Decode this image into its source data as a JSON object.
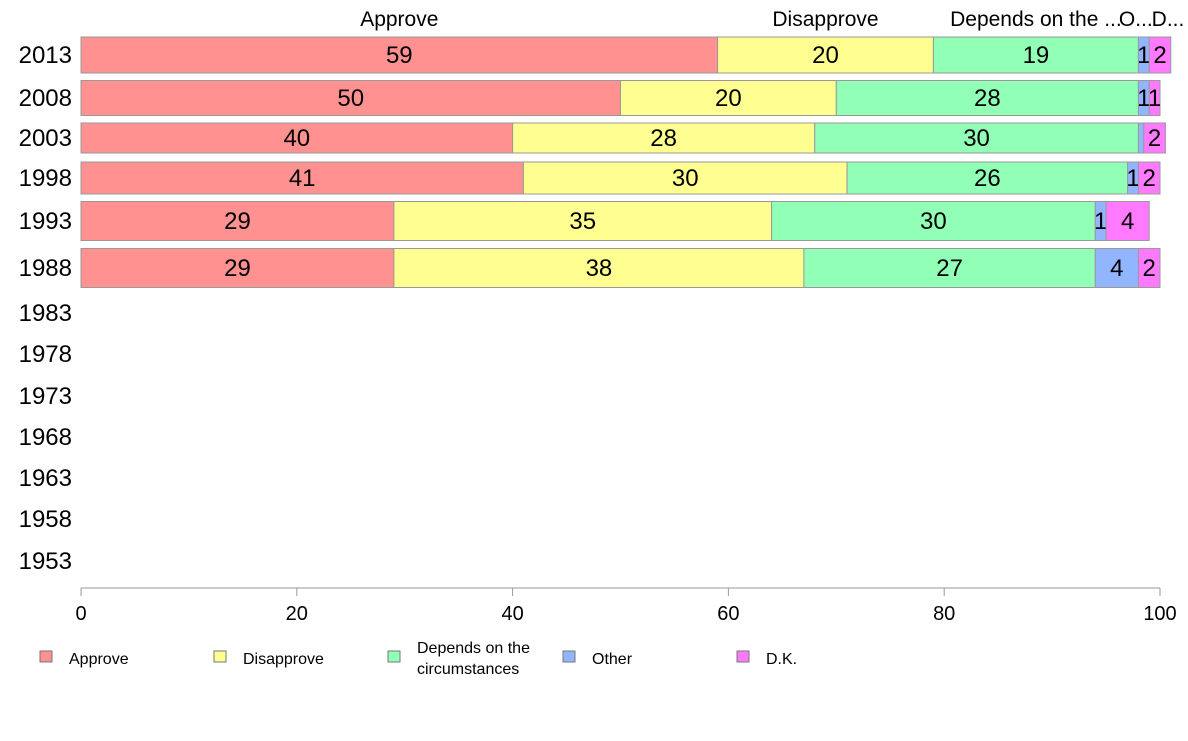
{
  "chart_data": {
    "type": "bar",
    "orientation": "horizontal",
    "stacked": true,
    "xlim": [
      0,
      100
    ],
    "x_ticks": [
      0,
      20,
      40,
      60,
      80,
      100
    ],
    "categories": [
      "1953",
      "1958",
      "1963",
      "1968",
      "1973",
      "1978",
      "1983",
      "1988",
      "1993",
      "1998",
      "2003",
      "2008",
      "2013"
    ],
    "series": [
      {
        "name": "Approve",
        "color": "#ff9191",
        "values": [
          null,
          null,
          null,
          null,
          null,
          null,
          null,
          29,
          29,
          41,
          40,
          50,
          59
        ]
      },
      {
        "name": "Disapprove",
        "color": "#ffff91",
        "values": [
          null,
          null,
          null,
          null,
          null,
          null,
          null,
          38,
          35,
          30,
          28,
          20,
          20
        ]
      },
      {
        "name": "Depends on the circumstances",
        "color": "#91ffb6",
        "values": [
          null,
          null,
          null,
          null,
          null,
          null,
          null,
          27,
          30,
          26,
          30,
          28,
          19
        ]
      },
      {
        "name": "Other",
        "color": "#91b6ff",
        "values": [
          null,
          null,
          null,
          null,
          null,
          null,
          null,
          4,
          1,
          1,
          0.5,
          1,
          1
        ]
      },
      {
        "name": "D.K.",
        "color": "#ff7aff",
        "values": [
          null,
          null,
          null,
          null,
          null,
          null,
          null,
          2,
          4,
          2,
          2,
          1,
          2
        ]
      }
    ],
    "data_labels": {
      "2013": [
        "59",
        "20",
        "19",
        "1",
        "2"
      ],
      "2008": [
        "50",
        "20",
        "28",
        "1",
        "1"
      ],
      "2003": [
        "40",
        "28",
        "30",
        "",
        "2"
      ],
      "1998": [
        "41",
        "30",
        "26",
        "1",
        "2"
      ],
      "1993": [
        "29",
        "35",
        "30",
        "1",
        "4"
      ],
      "1988": [
        "29",
        "38",
        "27",
        "4",
        "2"
      ]
    },
    "top_labels": [
      "Approve",
      "Disapprove",
      "Depends on the ...",
      "O...",
      "D..."
    ],
    "legend": {
      "placement": "bottom",
      "entries": [
        {
          "lines": [
            "Approve"
          ],
          "color": "#ff9191"
        },
        {
          "lines": [
            "Disapprove"
          ],
          "color": "#ffff91"
        },
        {
          "lines": [
            "Depends on the",
            "circumstances"
          ],
          "color": "#91ffb6"
        },
        {
          "lines": [
            "Other"
          ],
          "color": "#91b6ff"
        },
        {
          "lines": [
            "D.K."
          ],
          "color": "#ff7aff"
        }
      ]
    },
    "grid": false
  }
}
